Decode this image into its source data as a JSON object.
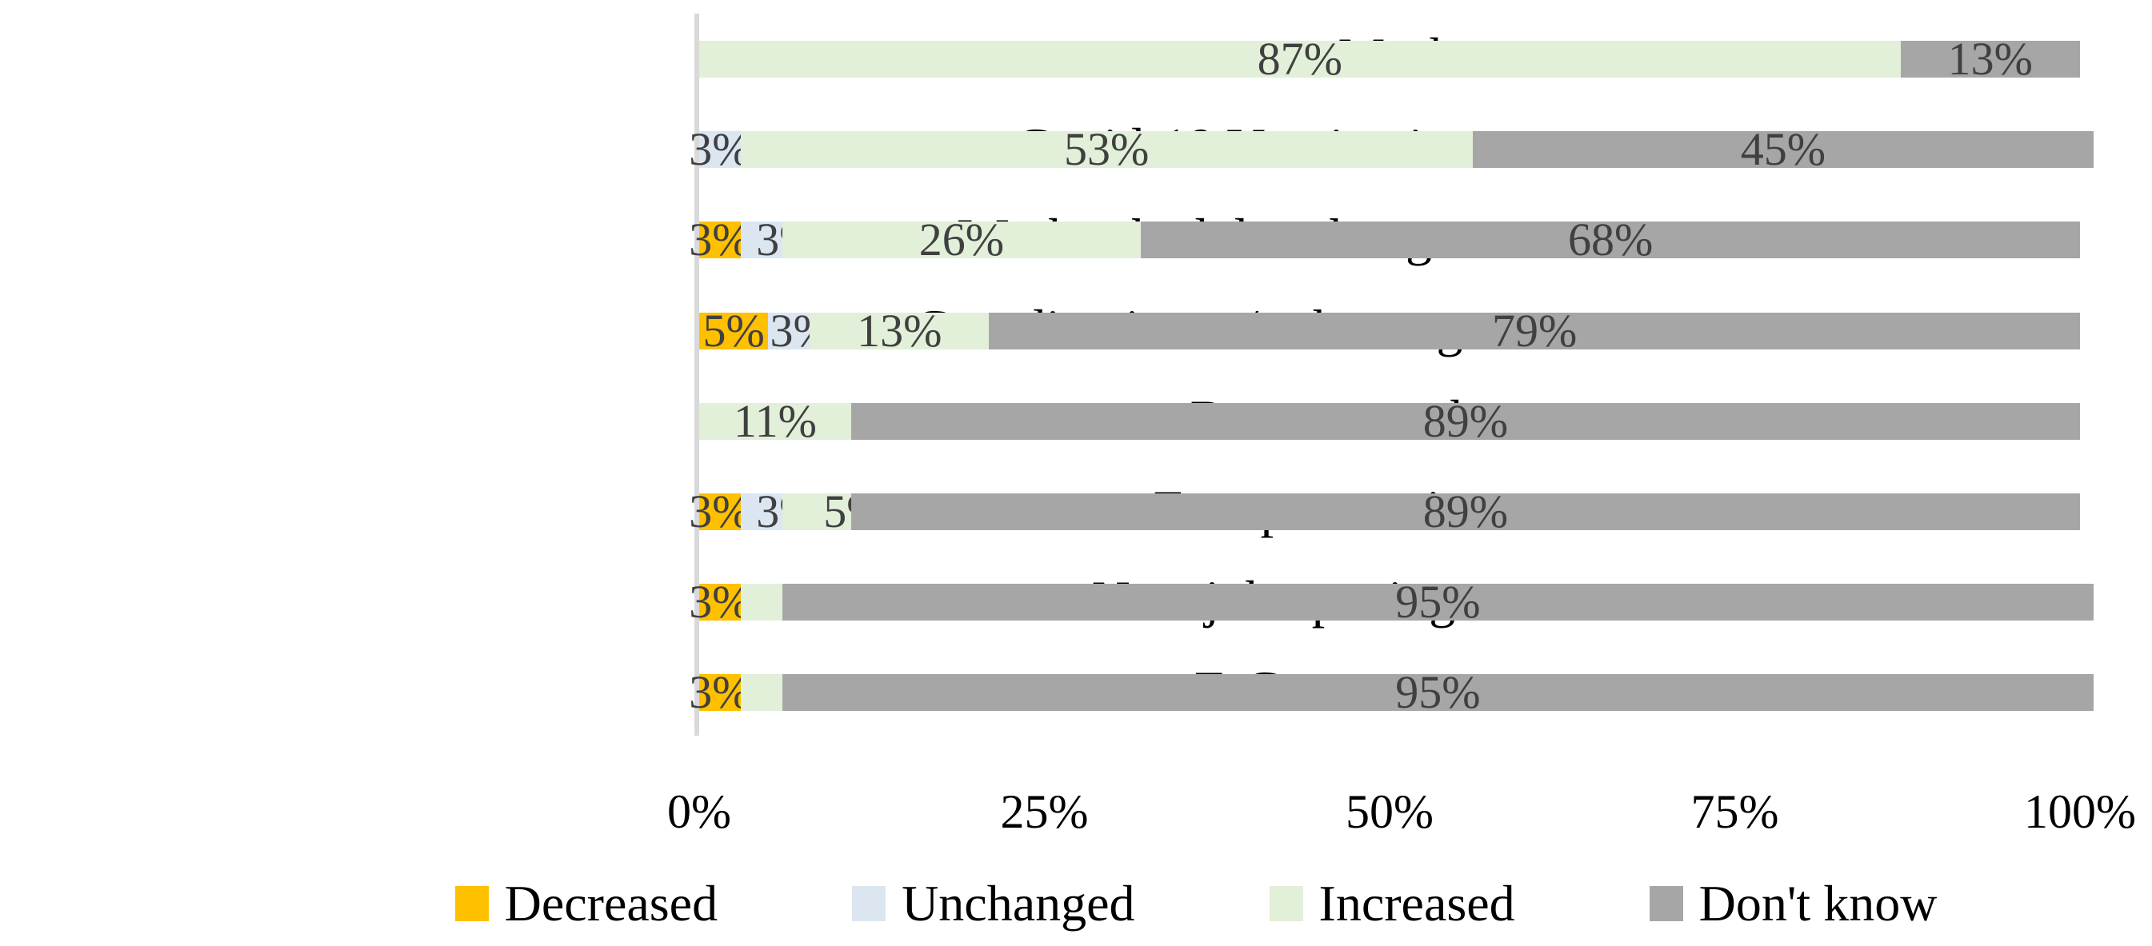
{
  "chart_data": {
    "type": "bar",
    "subtype": "horizontal-stacked",
    "title": "",
    "xlabel": "",
    "ylabel": "",
    "xlim": [
      0,
      100
    ],
    "grid": false,
    "legend_position": "bottom",
    "categories": [
      "Masks",
      "Covid-19 Vaccination",
      "Work schedules changes",
      "Coordination w/ other org.",
      "Remote work",
      "Fare per tourist",
      "New job openings",
      "E-Commerce"
    ],
    "series": [
      {
        "name": "Decreased",
        "color": "#FFC000",
        "values": [
          0,
          0,
          3,
          5,
          0,
          3,
          3,
          3
        ]
      },
      {
        "name": "Unchanged",
        "color": "#DCE6F1",
        "values": [
          0,
          3,
          3,
          3,
          0,
          3,
          0,
          0
        ]
      },
      {
        "name": "Increased",
        "color": "#E2EFD9",
        "values": [
          87,
          53,
          26,
          13,
          11,
          5,
          3,
          3
        ]
      },
      {
        "name": "Don't know",
        "color": "#A6A6A6",
        "values": [
          13,
          45,
          68,
          79,
          89,
          89,
          95,
          95
        ]
      }
    ],
    "value_label_format": "{v}%",
    "value_label_color": "#404040",
    "callout_labels": [
      {
        "category_index": 6,
        "series_index": 2,
        "note": "Increased 3% labeled outside bar with leader line"
      },
      {
        "category_index": 7,
        "series_index": 2,
        "note": "Increased 3% labeled outside bar with leader line"
      }
    ],
    "x_ticks": [
      {
        "label": "0%",
        "value": 0
      },
      {
        "label": "25%",
        "value": 25
      },
      {
        "label": "50%",
        "value": 50
      },
      {
        "label": "75%",
        "value": 75
      },
      {
        "label": "100%",
        "value": 100
      }
    ],
    "axis_line_color": "#D9D9D9",
    "leader_line_color": "#A6A6A6"
  }
}
